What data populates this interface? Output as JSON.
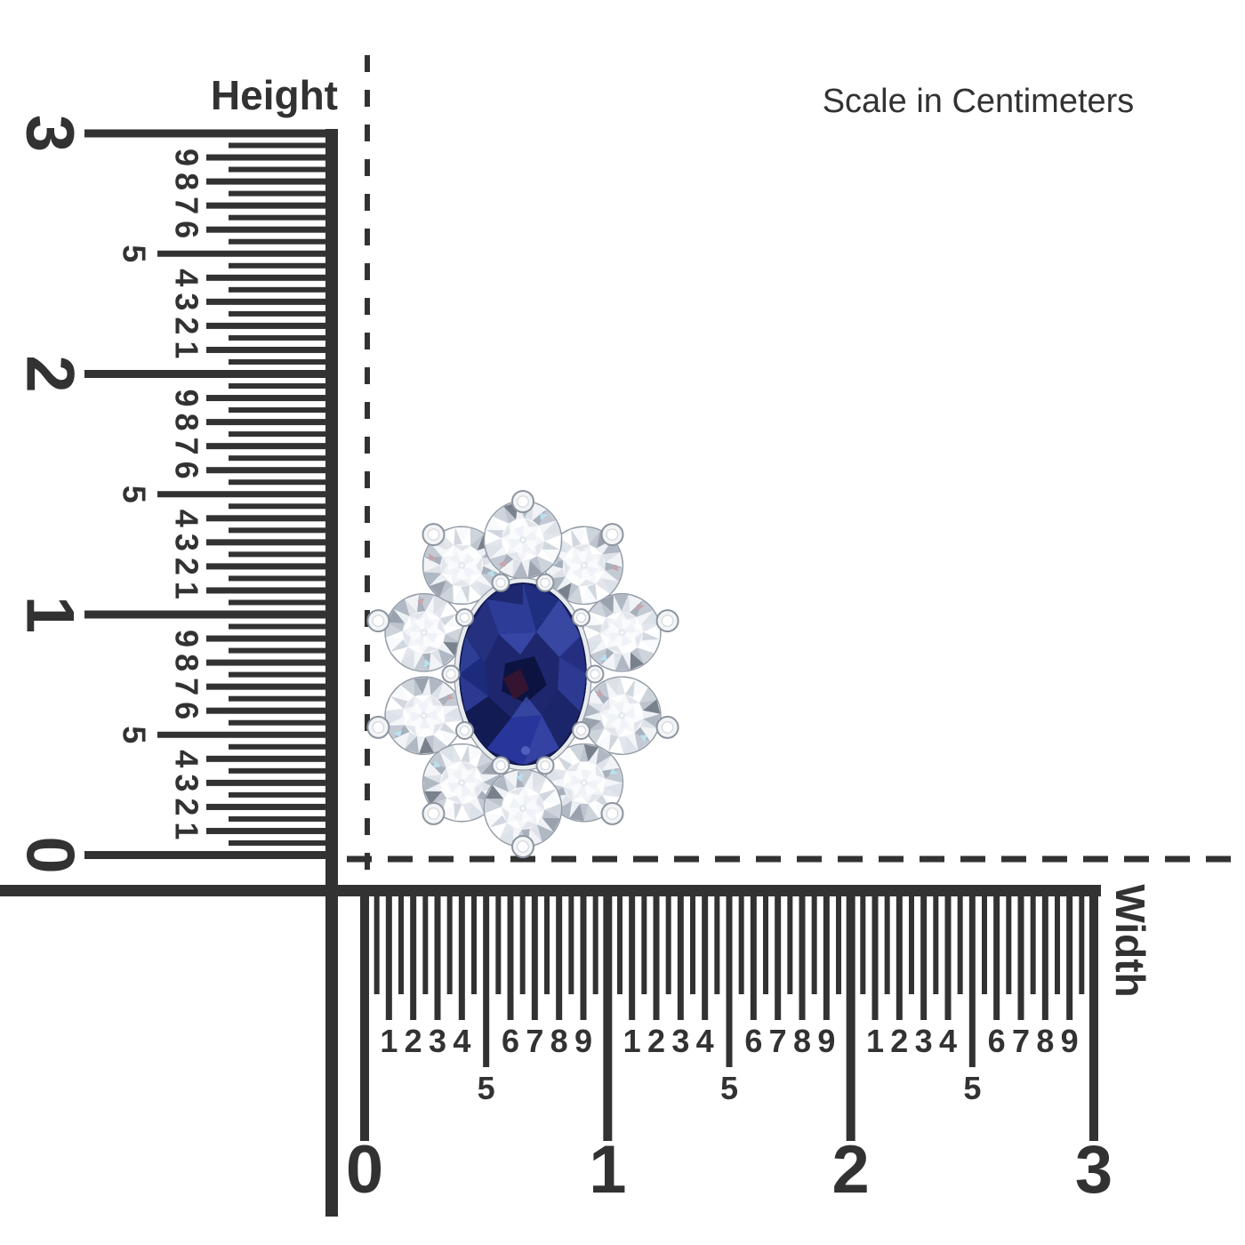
{
  "scale_note": "Scale in Centimeters",
  "height_ruler": {
    "label": "Height",
    "unit_numbers": [
      "3",
      "2",
      "1",
      "0"
    ],
    "mm_digits": [
      "9",
      "8",
      "7",
      "6",
      "5",
      "4",
      "3",
      "2",
      "1"
    ]
  },
  "width_ruler": {
    "label": "Width",
    "unit_numbers": [
      "0",
      "1",
      "2",
      "3"
    ],
    "mm_digits": [
      "1",
      "2",
      "3",
      "4",
      "5",
      "6",
      "7",
      "8",
      "9"
    ]
  },
  "colors": {
    "ink": "#323232",
    "metal_white": "#f2f4f6",
    "metal_shadow": "#8d95a0",
    "diamond_base": "#e7eaef",
    "sapphire_blue": "#1e276e",
    "sapphire_dark": "#0d1340",
    "sapphire_light": "#3847a2",
    "sapphire_accent": "#38152f"
  },
  "gem_cluster": {
    "center_stone": "oval blue sapphire",
    "halo_stone_count": 10,
    "outer_prong_count": 10,
    "inner_prong_count": 10
  }
}
